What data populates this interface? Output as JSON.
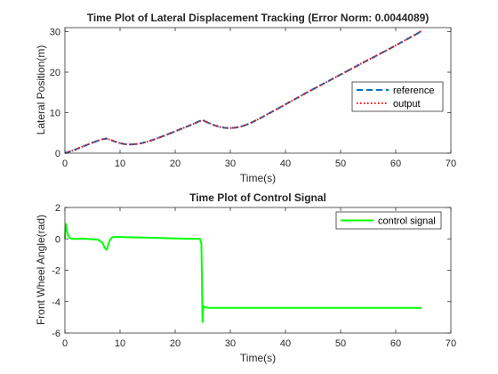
{
  "chart_data": [
    {
      "type": "line",
      "title": "Time Plot of Lateral Displacement Tracking (Error Norm: 0.0044089)",
      "xlabel": "Time(s)",
      "ylabel": "Lateral Position(m)",
      "xlim": [
        0,
        70
      ],
      "ylim": [
        0,
        31
      ],
      "xticks": [
        "0",
        "10",
        "20",
        "30",
        "40",
        "50",
        "60",
        "70"
      ],
      "yticks": [
        "0",
        "10",
        "20",
        "30"
      ],
      "grid": false,
      "legend_position": "right",
      "series": [
        {
          "name": "reference",
          "color": "#0072BD",
          "style": "dashed",
          "x": [
            0,
            1,
            2,
            3,
            4,
            5,
            6,
            7,
            7.5,
            8,
            9,
            10,
            11,
            12,
            13,
            14,
            15,
            16,
            17,
            18,
            19,
            20,
            21,
            22,
            23,
            24,
            24.5,
            25,
            26,
            27,
            28,
            29,
            30,
            31,
            32,
            33,
            34,
            35,
            36,
            37,
            38,
            40,
            42,
            44,
            46,
            48,
            50,
            52,
            54,
            56,
            58,
            60,
            62,
            64,
            64.7
          ],
          "y": [
            0,
            0.45,
            0.95,
            1.5,
            2.05,
            2.6,
            3.1,
            3.5,
            3.6,
            3.4,
            2.9,
            2.45,
            2.2,
            2.15,
            2.25,
            2.5,
            2.85,
            3.3,
            3.8,
            4.3,
            4.85,
            5.4,
            5.95,
            6.5,
            7.05,
            7.65,
            7.95,
            8.15,
            7.5,
            6.95,
            6.5,
            6.25,
            6.2,
            6.3,
            6.6,
            7.05,
            7.65,
            8.35,
            9.05,
            9.8,
            10.55,
            12.05,
            13.55,
            15.05,
            16.5,
            17.95,
            19.4,
            20.85,
            22.3,
            23.7,
            25.15,
            26.6,
            28.1,
            29.6,
            30.2
          ]
        },
        {
          "name": "output",
          "color": "#FF0000",
          "style": "dotted",
          "x": [
            0,
            1,
            2,
            3,
            4,
            5,
            6,
            7,
            7.5,
            8,
            9,
            10,
            11,
            12,
            13,
            14,
            15,
            16,
            17,
            18,
            19,
            20,
            21,
            22,
            23,
            24,
            24.5,
            25,
            26,
            27,
            28,
            29,
            30,
            31,
            32,
            33,
            34,
            35,
            36,
            37,
            38,
            40,
            42,
            44,
            46,
            48,
            50,
            52,
            54,
            56,
            58,
            60,
            62,
            64,
            64.7
          ],
          "y": [
            0,
            0.45,
            0.95,
            1.5,
            2.05,
            2.6,
            3.1,
            3.5,
            3.6,
            3.4,
            2.9,
            2.45,
            2.2,
            2.15,
            2.25,
            2.5,
            2.85,
            3.3,
            3.8,
            4.3,
            4.85,
            5.4,
            5.95,
            6.5,
            7.05,
            7.65,
            7.95,
            8.15,
            7.5,
            6.95,
            6.5,
            6.25,
            6.2,
            6.3,
            6.6,
            7.05,
            7.65,
            8.35,
            9.05,
            9.8,
            10.55,
            12.05,
            13.55,
            15.05,
            16.5,
            17.95,
            19.4,
            20.85,
            22.3,
            23.7,
            25.15,
            26.6,
            28.1,
            29.6,
            30.2
          ]
        }
      ]
    },
    {
      "type": "line",
      "title": "Time Plot of Control Signal",
      "xlabel": "Time(s)",
      "ylabel": "Front Wheel Angle(rad)",
      "xlim": [
        0,
        70
      ],
      "ylim": [
        -6,
        2
      ],
      "xticks": [
        "0",
        "10",
        "20",
        "30",
        "40",
        "50",
        "60",
        "70"
      ],
      "yticks": [
        "-6",
        "-4",
        "-2",
        "0",
        "2"
      ],
      "grid": false,
      "legend_position": "top-right",
      "series": [
        {
          "name": "control signal",
          "color": "#00FF00",
          "style": "solid",
          "x": [
            0,
            0.15,
            0.35,
            0.6,
            0.9,
            1.3,
            2,
            4,
            6,
            6.8,
            7.2,
            7.5,
            7.7,
            7.9,
            8.2,
            8.6,
            9,
            10,
            12,
            15,
            18,
            20,
            22,
            24.5,
            24.75,
            24.85,
            24.95,
            25.05,
            25.15,
            25.4,
            26,
            28,
            30,
            35,
            40,
            45,
            50,
            55,
            60,
            64.7
          ],
          "y": [
            0,
            0.95,
            0.55,
            0.2,
            0.05,
            0.0,
            0.0,
            0.0,
            -0.05,
            -0.25,
            -0.55,
            -0.7,
            -0.6,
            -0.3,
            -0.05,
            0.1,
            0.12,
            0.12,
            0.1,
            0.08,
            0.05,
            0.03,
            0.01,
            0.0,
            -0.3,
            -2.5,
            -5.3,
            -4.6,
            -4.3,
            -4.35,
            -4.4,
            -4.4,
            -4.4,
            -4.4,
            -4.4,
            -4.4,
            -4.4,
            -4.4,
            -4.4,
            -4.4
          ]
        }
      ]
    }
  ]
}
